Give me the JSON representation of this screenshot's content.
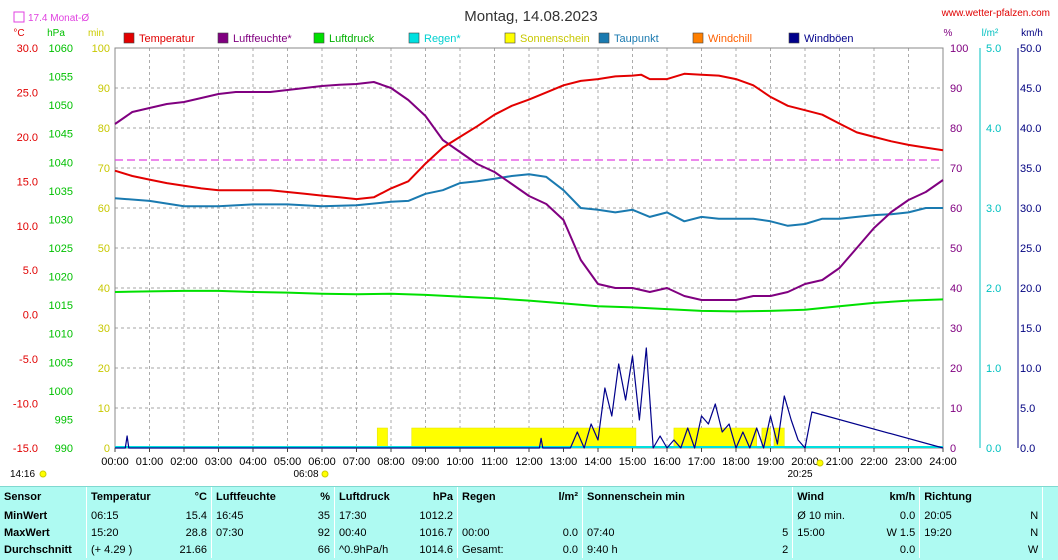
{
  "header": {
    "title": "Montag, 14.08.2023",
    "site": "www.wetter-pfalzen.com",
    "month_avg_label": "17.4 Monat-Ø"
  },
  "colors": {
    "temperatur": "#e30000",
    "luftfeuchte": "#800080",
    "luftdruck": "#00e000",
    "regen": "#00e0e0",
    "sonnenschein": "#ffff00",
    "taupunkt": "#1a7ab0",
    "windchill": "#ff7f00",
    "windboeen": "#00008b",
    "month_avg": "#e040e0"
  },
  "chart_data": {
    "type": "line",
    "title": "Montag, 14.08.2023",
    "x_ticks": [
      "00:00",
      "01:00",
      "02:00",
      "03:00",
      "04:00",
      "05:00",
      "06:00",
      "07:00",
      "08:00",
      "09:00",
      "10:00",
      "11:00",
      "12:00",
      "13:00",
      "14:00",
      "15:00",
      "16:00",
      "17:00",
      "18:00",
      "19:00",
      "20:00",
      "21:00",
      "22:00",
      "23:00",
      "24:00"
    ],
    "sunrise": "06:08",
    "sunset": "20:25",
    "current_time": "14:16",
    "month_avg_temp": 17.4,
    "axes": {
      "temp": {
        "unit": "°C",
        "ticks": [
          "30.0",
          "25.0",
          "20.0",
          "15.0",
          "10.0",
          "5.0",
          "0.0",
          "-5.0",
          "-10.0",
          "-15.0"
        ],
        "range": [
          -15,
          30
        ]
      },
      "pressure": {
        "unit": "hPa",
        "ticks": [
          "1060",
          "1055",
          "1050",
          "1045",
          "1040",
          "1035",
          "1030",
          "1025",
          "1020",
          "1015",
          "1010",
          "1005",
          "1000",
          "995",
          "990"
        ],
        "range": [
          990,
          1060
        ]
      },
      "sun": {
        "unit": "min",
        "ticks": [
          "100",
          "90",
          "80",
          "70",
          "60",
          "50",
          "40",
          "30",
          "20",
          "10",
          "0"
        ],
        "range": [
          0,
          100
        ]
      },
      "humidity": {
        "unit": "%",
        "ticks": [
          "100",
          "90",
          "80",
          "70",
          "60",
          "50",
          "40",
          "30",
          "20",
          "10",
          "0"
        ],
        "range": [
          0,
          100
        ]
      },
      "rain": {
        "unit": "l/m²",
        "ticks": [
          "5.0",
          "4.0",
          "3.0",
          "2.0",
          "1.0",
          "0.0"
        ],
        "range": [
          0,
          5
        ]
      },
      "wind": {
        "unit": "km/h",
        "ticks": [
          "50.0",
          "45.0",
          "40.0",
          "35.0",
          "30.0",
          "25.0",
          "20.0",
          "15.0",
          "10.0",
          "5.0",
          "0.0"
        ],
        "range": [
          0,
          50
        ]
      }
    },
    "legend": [
      "Temperatur",
      "Luftfeuchte*",
      "Luftdruck",
      "Regen*",
      "Sonnenschein",
      "Taupunkt",
      "Windchill",
      "Windböen"
    ],
    "series": [
      {
        "name": "Temperatur",
        "axis": "temp",
        "x": [
          0,
          0.5,
          1,
          1.5,
          2,
          2.5,
          3,
          3.5,
          4,
          4.5,
          5,
          5.5,
          6,
          6.5,
          7,
          7.5,
          8,
          8.5,
          9,
          9.5,
          10,
          10.5,
          11,
          11.5,
          12,
          12.5,
          13,
          13.5,
          14,
          14.5,
          15,
          15.25,
          15.5,
          16,
          16.5,
          17,
          17.5,
          18,
          18.5,
          19,
          19.5,
          20,
          20.5,
          21,
          21.5,
          22,
          22.5,
          23,
          23.5,
          24
        ],
        "values": [
          16.2,
          15.6,
          15.2,
          14.8,
          14.5,
          14.2,
          14.0,
          14.0,
          14.0,
          14.0,
          13.8,
          13.6,
          13.4,
          13.2,
          13.0,
          13.2,
          14.2,
          15.0,
          17.0,
          18.8,
          20.0,
          21.2,
          22.5,
          23.5,
          24.2,
          25.0,
          25.8,
          26.3,
          26.5,
          26.8,
          26.9,
          27.0,
          26.5,
          26.5,
          27.1,
          27.0,
          26.9,
          26.5,
          25.8,
          24.5,
          23.5,
          23.0,
          22.5,
          21.5,
          20.5,
          20.0,
          19.5,
          19.1,
          18.8,
          18.5
        ]
      },
      {
        "name": "Luftfeuchte*",
        "axis": "humidity",
        "x": [
          0,
          0.5,
          1,
          1.5,
          2,
          2.5,
          3,
          3.5,
          4,
          4.5,
          5,
          5.5,
          6,
          6.5,
          7,
          7.5,
          8,
          8.5,
          9,
          9.5,
          10,
          10.5,
          11,
          11.5,
          12,
          12.5,
          13,
          13.5,
          14,
          14.5,
          15,
          15.5,
          16,
          16.5,
          17,
          17.5,
          18,
          18.5,
          19,
          19.5,
          20,
          20.5,
          21,
          21.5,
          22,
          22.5,
          23,
          23.5,
          24
        ],
        "values": [
          81,
          84,
          85,
          86,
          86.5,
          87.5,
          88.5,
          89,
          89,
          89,
          89.5,
          90,
          90.5,
          90.8,
          91,
          91.5,
          90,
          87,
          83,
          77,
          74,
          71,
          69,
          66,
          63,
          61,
          57,
          47,
          41,
          40,
          40,
          39,
          40,
          38,
          37,
          37,
          37,
          38,
          38,
          39,
          41,
          42,
          45,
          50,
          55,
          59,
          62,
          64,
          67
        ]
      },
      {
        "name": "Luftdruck",
        "axis": "pressure",
        "x": [
          0,
          1,
          2,
          3,
          4,
          5,
          6,
          7,
          8,
          9,
          10,
          11,
          12,
          13,
          14,
          15,
          16,
          17,
          18,
          19,
          20,
          21,
          22,
          23,
          24
        ],
        "values": [
          1017.3,
          1017.4,
          1017.5,
          1017.5,
          1017.3,
          1017.2,
          1017.0,
          1016.9,
          1017.0,
          1016.8,
          1016.5,
          1016.2,
          1015.8,
          1015.3,
          1014.8,
          1014.6,
          1014.3,
          1014.0,
          1013.9,
          1014.0,
          1014.2,
          1014.8,
          1015.4,
          1015.8,
          1016.0
        ]
      },
      {
        "name": "Taupunkt",
        "axis": "temp",
        "x": [
          0,
          1,
          2,
          3,
          4,
          5,
          6,
          7,
          8,
          8.5,
          9,
          9.5,
          10,
          10.5,
          11,
          11.5,
          12,
          12.5,
          13,
          13.5,
          14,
          14.5,
          15,
          15.5,
          16,
          16.5,
          17,
          17.5,
          18,
          18.5,
          19,
          19.5,
          20,
          20.5,
          21,
          21.5,
          22,
          22.5,
          23,
          23.5,
          24
        ],
        "values": [
          13.1,
          12.8,
          12.2,
          12.2,
          12.4,
          12.4,
          12.2,
          12.3,
          12.7,
          12.8,
          13.6,
          14.0,
          14.8,
          15.0,
          15.3,
          15.6,
          15.8,
          15.5,
          14.0,
          12.0,
          11.8,
          11.5,
          11.8,
          11.0,
          11.5,
          10.5,
          11.0,
          10.8,
          10.8,
          10.8,
          10.5,
          10.0,
          10.2,
          10.8,
          10.8,
          11.0,
          11.2,
          11.3,
          11.5,
          12.0,
          12.0
        ]
      },
      {
        "name": "Windböen",
        "axis": "wind",
        "x": [
          0,
          0.3,
          0.35,
          0.4,
          12.3,
          12.35,
          12.4,
          13.2,
          13.4,
          13.6,
          13.8,
          14.0,
          14.2,
          14.4,
          14.6,
          14.8,
          15.0,
          15.2,
          15.4,
          15.6,
          15.8,
          16.0,
          16.2,
          16.4,
          16.6,
          16.8,
          17.0,
          17.2,
          17.4,
          17.6,
          17.8,
          18.0,
          18.2,
          18.4,
          18.6,
          18.8,
          19.0,
          19.2,
          19.4,
          19.6,
          19.8,
          20.0,
          20.2,
          24
        ],
        "values": [
          0,
          0,
          1.5,
          0,
          0,
          1.2,
          0,
          0,
          2.0,
          0,
          3.0,
          1.0,
          7.5,
          4.0,
          10.5,
          6.0,
          11.5,
          3.5,
          12.5,
          0,
          1.5,
          0,
          1.0,
          0,
          2.5,
          0,
          4.0,
          3.0,
          5.5,
          2.0,
          3.0,
          0,
          2.0,
          0,
          2.5,
          0,
          4.0,
          0.5,
          6.5,
          3.5,
          1.0,
          0,
          4.5,
          0
        ]
      }
    ],
    "sunshine_blocks": [
      [
        7.6,
        7.9
      ],
      [
        8.6,
        15.1
      ],
      [
        16.2,
        18.6
      ],
      [
        18.75,
        19.0
      ],
      [
        19.1,
        19.4
      ]
    ]
  },
  "stats": {
    "headers": {
      "sensor": "Sensor",
      "temp": "Temperatur",
      "temp_unit": "°C",
      "hum": "Luftfeuchte",
      "hum_unit": "%",
      "press": "Luftdruck",
      "press_unit": "hPa",
      "rain": "Regen",
      "rain_unit": "l/m²",
      "sun": "Sonnenschein min",
      "wind": "Wind",
      "wind_unit": "km/h",
      "dir": "Richtung"
    },
    "rows": [
      {
        "label": "MinWert",
        "temp_t": "06:15",
        "temp_v": "15.4",
        "hum_t": "16:45",
        "hum_v": "35",
        "press_t": "17:30",
        "press_v": "1012.2",
        "rain_t": "",
        "rain_v": "",
        "sun_t": "",
        "sun_v": "",
        "wind_t": "Ø 10 min.",
        "wind_v": "0.0",
        "dir_t": "20:05",
        "dir_v": "N"
      },
      {
        "label": "MaxWert",
        "temp_t": "15:20",
        "temp_v": "28.8",
        "hum_t": "07:30",
        "hum_v": "92",
        "press_t": "00:40",
        "press_v": "1016.7",
        "rain_t": "00:00",
        "rain_v": "0.0",
        "sun_t": "07:40",
        "sun_v": "5",
        "wind_t": "15:00",
        "wind_v": "W 1.5",
        "dir_t": "19:20",
        "dir_v": "N"
      },
      {
        "label": "Durchschnitt",
        "temp_t": "(+ 4.29 )",
        "temp_v": "21.66",
        "hum_t": "",
        "hum_v": "66",
        "press_t": "^0.9hPa/h",
        "press_v": "1014.6",
        "rain_t": "Gesamt:",
        "rain_v": "0.0",
        "sun_t": "9:40 h",
        "sun_v": "2",
        "wind_t": "",
        "wind_v": "0.0",
        "dir_t": "",
        "dir_v": "W"
      }
    ]
  }
}
